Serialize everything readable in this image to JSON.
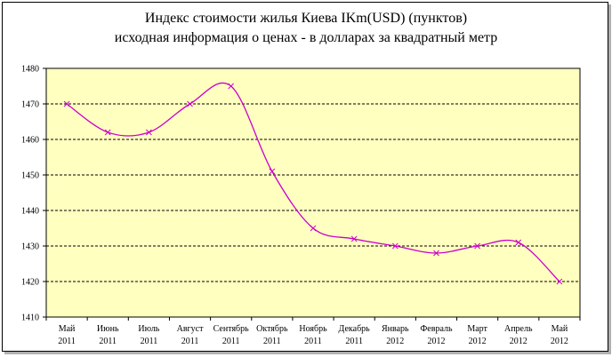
{
  "chart_data": {
    "type": "line",
    "title": "Индекс стоимости жилья Киева  IKm(USD)  (пунктов)",
    "subtitle": "исходная  информация о ценах -  в долларах за квадратный  метр",
    "categories": [
      [
        "Май",
        "2011"
      ],
      [
        "Июнь",
        "2011"
      ],
      [
        "Июль",
        "2011"
      ],
      [
        "Август",
        "2011"
      ],
      [
        "Сентябрь",
        "2011"
      ],
      [
        "Октябрь",
        "2011"
      ],
      [
        "Ноябрь",
        "2011"
      ],
      [
        "Декабрь",
        "2011"
      ],
      [
        "Январь",
        "2012"
      ],
      [
        "Февраль",
        "2012"
      ],
      [
        "Март",
        "2012"
      ],
      [
        "Апрель",
        "2012"
      ],
      [
        "Май",
        "2012"
      ]
    ],
    "values": [
      1470,
      1462,
      1462,
      1470,
      1475,
      1451,
      1435,
      1432,
      1430,
      1428,
      1430,
      1431,
      1420
    ],
    "ylim": [
      1410,
      1480
    ],
    "yticks": [
      1410,
      1420,
      1430,
      1440,
      1450,
      1460,
      1470,
      1480
    ],
    "grid": "horizontal dashed",
    "plot_background": "#ffffc0",
    "line_color": "#cc00cc",
    "xlabel": "",
    "ylabel": ""
  }
}
